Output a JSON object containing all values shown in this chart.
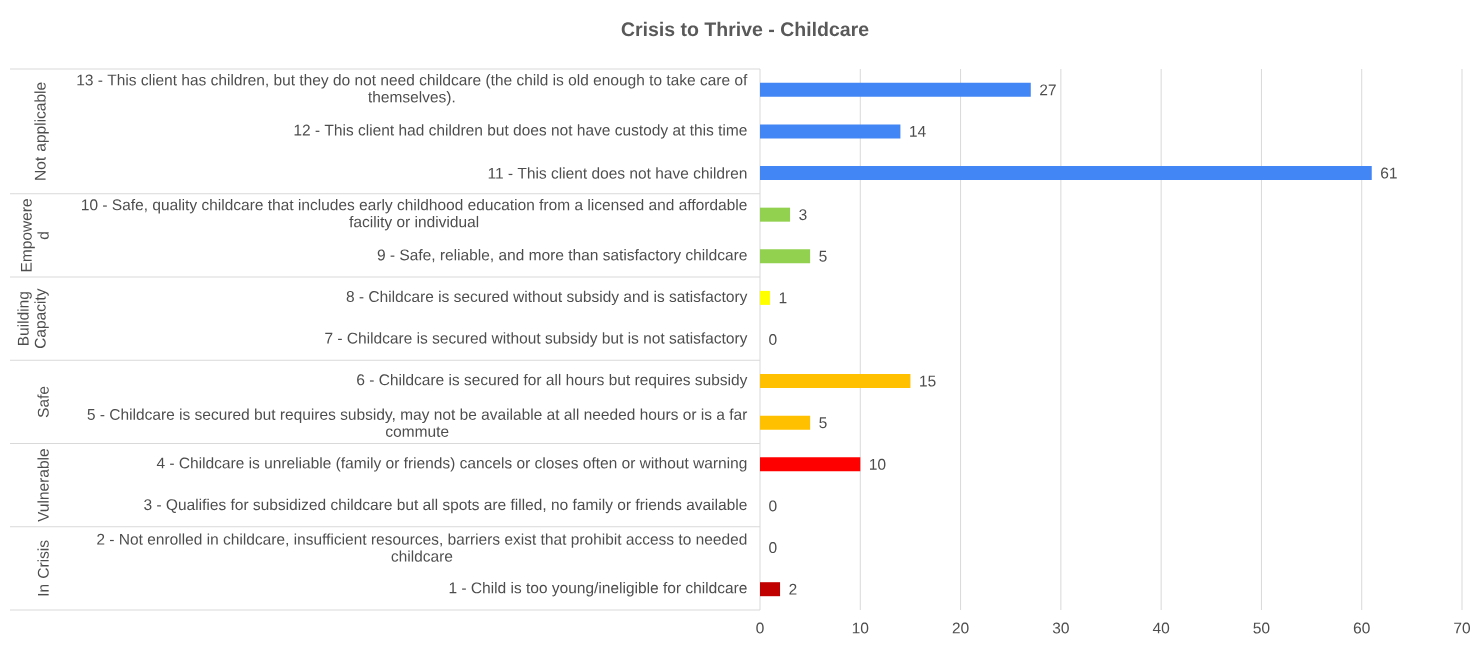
{
  "chart_data": {
    "type": "bar",
    "orientation": "horizontal",
    "title": "Crisis to Thrive - Childcare",
    "categories": [
      "13 - This client has children, but they do not need childcare (the child is old enough to take care of themselves).",
      "12 - This client had children but does not have custody at this time",
      "11 - This client does not have children",
      "10 - Safe, quality childcare that includes early childhood education from a licensed and affordable facility or individual",
      "9 - Safe, reliable, and more than satisfactory childcare",
      "8 - Childcare is secured without subsidy and is satisfactory",
      "7 - Childcare is secured without subsidy but is not satisfactory",
      "6 - Childcare is secured for all hours but requires subsidy",
      "5 - Childcare is secured but requires subsidy, may not be available at all needed hours or is a far commute",
      "4 - Childcare is unreliable (family or friends) cancels or closes often or without warning",
      "3 - Qualifies for subsidized childcare but all spots are filled, no family or friends available",
      "2 - Not enrolled in childcare, insufficient resources, barriers exist that prohibit access to needed childcare",
      "1 - Child is too young/ineligible for childcare"
    ],
    "values": [
      27,
      14,
      61,
      3,
      5,
      1,
      0,
      15,
      5,
      10,
      0,
      0,
      2
    ],
    "colors": [
      "#4285f4",
      "#4285f4",
      "#4285f4",
      "#92d050",
      "#92d050",
      "#ffff00",
      "#ffff00",
      "#ffc000",
      "#ffc000",
      "#ff0000",
      "#ff0000",
      "#c00000",
      "#c00000"
    ],
    "xlim": [
      0,
      70
    ],
    "xticks": [
      0,
      10,
      20,
      30,
      40,
      50,
      60,
      70
    ],
    "grid": "x",
    "data_labels": true,
    "annotations": [
      "Not applicable",
      "Empowere d",
      "Building Capacity",
      "Safe",
      "Vulnerable",
      "In Crisis"
    ]
  }
}
